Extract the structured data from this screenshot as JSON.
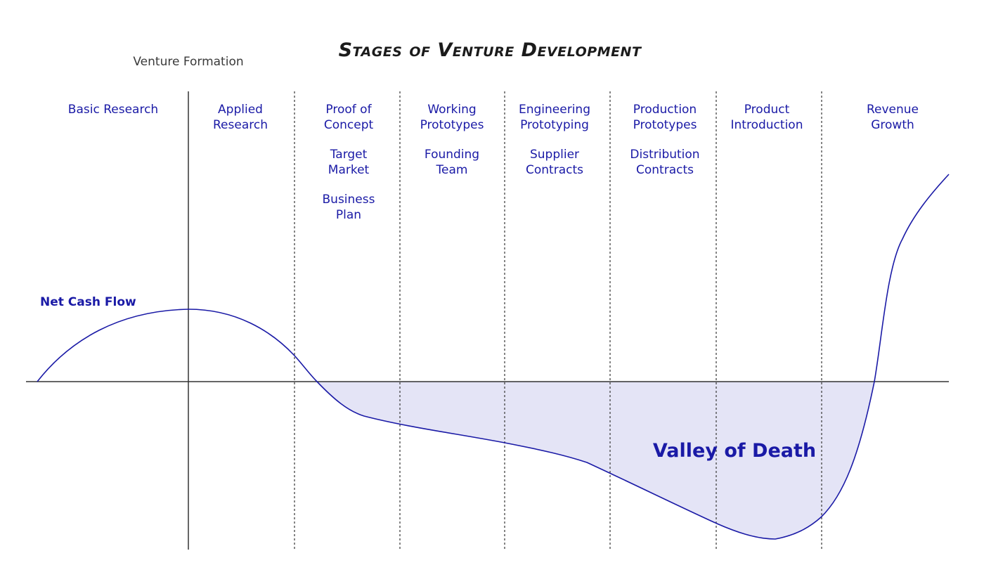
{
  "title": "Stages of Venture Development",
  "venture_formation_label": "Venture Formation",
  "net_cash_flow_label": "Net Cash Flow",
  "valley_label": "Valley of Death",
  "stages": [
    {
      "id": "basic-research",
      "lines": [
        "Basic Research"
      ]
    },
    {
      "id": "applied-research",
      "lines": [
        "Applied",
        "Research"
      ]
    },
    {
      "id": "proof-of-concept",
      "lines": [
        "Proof of",
        "Concept"
      ]
    },
    {
      "id": "working-prototypes",
      "lines": [
        "Working",
        "Prototypes"
      ]
    },
    {
      "id": "engineering-prototyping",
      "lines": [
        "Engineering",
        "Prototyping"
      ]
    },
    {
      "id": "production-prototypes",
      "lines": [
        "Production",
        "Prototypes"
      ]
    },
    {
      "id": "product-introduction",
      "lines": [
        "Product",
        "Introduction"
      ]
    },
    {
      "id": "revenue-growth",
      "lines": [
        "Revenue",
        "Growth"
      ]
    }
  ],
  "milestones": [
    {
      "id": "target-market",
      "stage": "proof-of-concept",
      "lines": [
        "Target",
        "Market"
      ]
    },
    {
      "id": "business-plan",
      "stage": "proof-of-concept",
      "lines": [
        "Business",
        "Plan"
      ]
    },
    {
      "id": "founding-team",
      "stage": "working-prototypes",
      "lines": [
        "Founding",
        "Team"
      ]
    },
    {
      "id": "supplier-contracts",
      "stage": "engineering-prototyping",
      "lines": [
        "Supplier",
        "Contracts"
      ]
    },
    {
      "id": "distribution-contracts",
      "stage": "production-prototypes",
      "lines": [
        "Distribution",
        "Contracts"
      ]
    }
  ],
  "colors": {
    "curve": "#1a1aa6",
    "valley_fill": "#e4e4f6",
    "axis": "#333333",
    "divider": "#444444",
    "text": "#1a1aa6",
    "title": "#1b1b1b"
  }
}
